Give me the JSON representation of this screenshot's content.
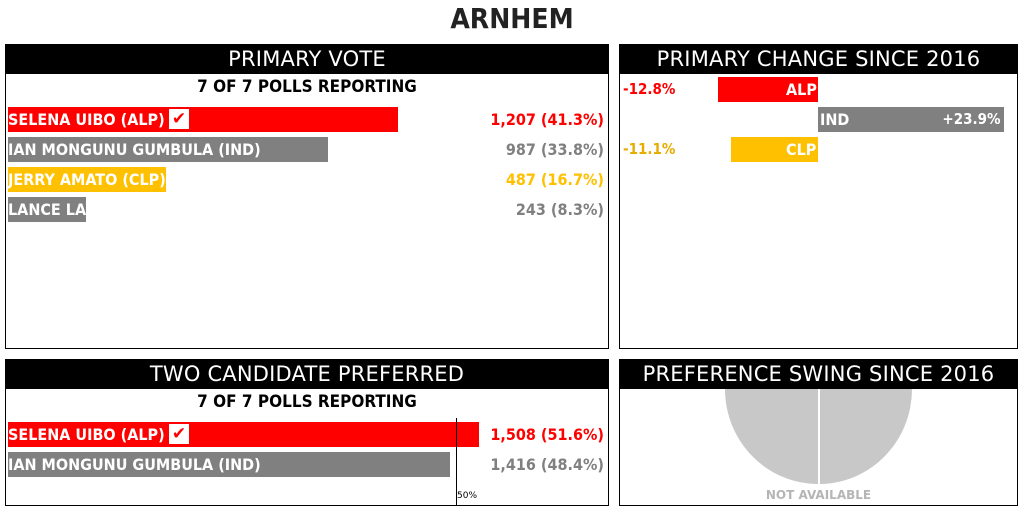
{
  "title": "ARNHEM",
  "primary_vote": {
    "header": "PRIMARY VOTE",
    "polls": "7 OF 7 POLLS REPORTING"
  },
  "primary_change": {
    "header": "PRIMARY CHANGE SINCE 2016"
  },
  "tcp": {
    "header": "TWO CANDIDATE PREFERRED",
    "polls": "7 OF 7 POLLS REPORTING",
    "axis_label": "50%"
  },
  "swing": {
    "header": "PREFERENCE SWING SINCE 2016",
    "status": "NOT AVAILABLE"
  },
  "colors": {
    "ALP": "#ff0000",
    "IND": "#808080",
    "CLP": "#ffc000"
  },
  "chart_data": [
    {
      "type": "bar",
      "title": "PRIMARY VOTE",
      "categories": [
        "SELENA UIBO (ALP)",
        "IAN MONGUNU GUMBULA (IND)",
        "JERRY AMATO (CLP)",
        "LANCE LAWRENCE (IND)"
      ],
      "parties": [
        "ALP",
        "IND",
        "CLP",
        "IND"
      ],
      "values": [
        41.3,
        33.8,
        16.7,
        8.3
      ],
      "votes": [
        1207,
        987,
        487,
        243
      ],
      "value_labels": [
        "1,207 (41.3%)",
        "987 (33.8%)",
        "487 (16.7%)",
        "243 (8.3%)"
      ],
      "elected": [
        true,
        false,
        false,
        false
      ],
      "xlim": [
        0,
        55
      ]
    },
    {
      "type": "bar",
      "title": "PRIMARY CHANGE SINCE 2016",
      "categories": [
        "ALP",
        "IND",
        "CLP"
      ],
      "values": [
        -12.8,
        23.9,
        -11.1
      ],
      "value_labels": [
        "-12.8%",
        "+23.9%",
        "-11.1%"
      ],
      "xlim": [
        -25,
        25
      ]
    },
    {
      "type": "bar",
      "title": "TWO CANDIDATE PREFERRED",
      "categories": [
        "SELENA UIBO (ALP)",
        "IAN MONGUNU GUMBULA (IND)"
      ],
      "parties": [
        "ALP",
        "IND"
      ],
      "values": [
        51.6,
        48.4
      ],
      "votes": [
        1508,
        1416
      ],
      "value_labels": [
        "1,508 (51.6%)",
        "1,416 (48.4%)"
      ],
      "elected": [
        true,
        false
      ],
      "xlim": [
        0,
        57
      ]
    }
  ]
}
